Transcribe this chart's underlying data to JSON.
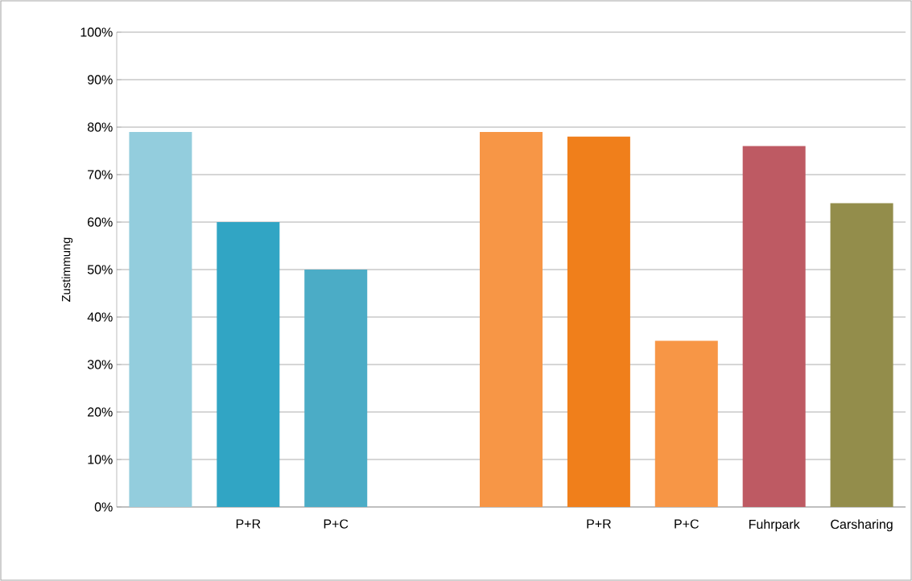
{
  "chart_data": {
    "type": "bar",
    "ylabel": "Zustimmung",
    "categories": [
      null,
      "P+R",
      "P+C",
      null,
      null,
      "P+R",
      "P+C",
      "Fuhrpark",
      "Carsharing"
    ],
    "values": [
      79,
      60,
      50,
      null,
      79,
      78,
      35,
      76,
      64
    ],
    "colors": [
      "#93cddd",
      "#31a5c4",
      "#4bacc6",
      "#ffffff",
      "#f79646",
      "#f07f1b",
      "#f79646",
      "#be5a63",
      "#938d4b"
    ],
    "ylim": [
      0,
      100
    ],
    "yticks": [
      {
        "value": 0,
        "label": "0%"
      },
      {
        "value": 10,
        "label": "10%"
      },
      {
        "value": 20,
        "label": "20%"
      },
      {
        "value": 30,
        "label": "30%"
      },
      {
        "value": 40,
        "label": "40%"
      },
      {
        "value": 50,
        "label": "50%"
      },
      {
        "value": 60,
        "label": "60%"
      },
      {
        "value": 70,
        "label": "70%"
      },
      {
        "value": 80,
        "label": "80%"
      },
      {
        "value": 90,
        "label": "90%"
      },
      {
        "value": 100,
        "label": "100%"
      }
    ],
    "grid": "y"
  }
}
